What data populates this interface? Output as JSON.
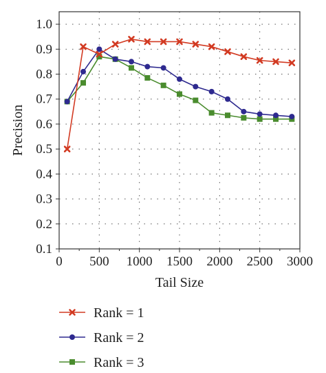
{
  "chart_data": {
    "type": "line",
    "title": "",
    "xlabel": "Tail Size",
    "ylabel": "Precision",
    "xlim": [
      0,
      3000
    ],
    "ylim": [
      0.1,
      1.05
    ],
    "xticks": [
      0,
      500,
      1000,
      1500,
      2000,
      2500,
      3000
    ],
    "xtick_labels": [
      "0",
      "500",
      "1000",
      "1500",
      "2000",
      "2500",
      "3000"
    ],
    "yticks": [
      0.1,
      0.2,
      0.3,
      0.4,
      0.5,
      0.6,
      0.7,
      0.8,
      0.9,
      1.0
    ],
    "ytick_labels": [
      "0.1",
      "0.2",
      "0.3",
      "0.4",
      "0.5",
      "0.6",
      "0.7",
      "0.8",
      "0.9",
      "1.0"
    ],
    "grid": "dotted",
    "legend_placement": "bottom",
    "x": [
      100,
      300,
      500,
      700,
      900,
      1100,
      1300,
      1500,
      1700,
      1900,
      2100,
      2300,
      2500,
      2700,
      2900
    ],
    "series": [
      {
        "name": "Rank = 1",
        "color": "#d23a22",
        "marker": "x",
        "values": [
          0.5,
          0.91,
          0.88,
          0.92,
          0.94,
          0.93,
          0.93,
          0.93,
          0.92,
          0.91,
          0.89,
          0.87,
          0.855,
          0.85,
          0.845
        ]
      },
      {
        "name": "Rank = 2",
        "color": "#2e2a8f",
        "marker": "circle",
        "values": [
          0.69,
          0.81,
          0.9,
          0.86,
          0.85,
          0.83,
          0.825,
          0.78,
          0.75,
          0.73,
          0.7,
          0.65,
          0.64,
          0.635,
          0.63
        ]
      },
      {
        "name": "Rank = 3",
        "color": "#4a8c2e",
        "marker": "square",
        "values": [
          0.69,
          0.765,
          0.87,
          0.86,
          0.825,
          0.785,
          0.755,
          0.72,
          0.695,
          0.645,
          0.635,
          0.625,
          0.62,
          0.62,
          0.62
        ]
      }
    ]
  }
}
